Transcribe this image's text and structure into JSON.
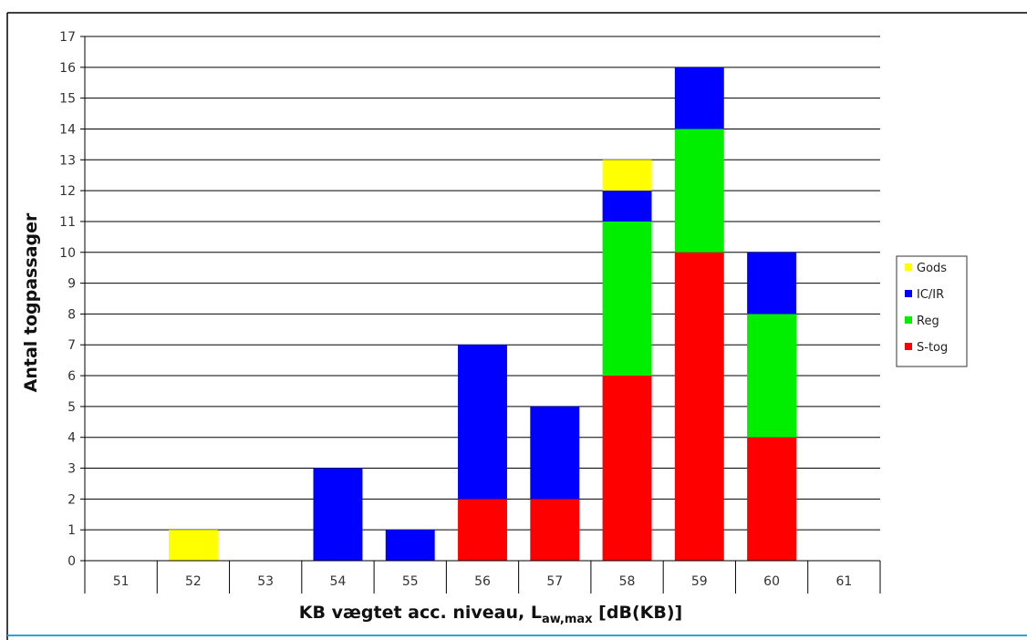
{
  "chart_data": {
    "type": "bar",
    "stacked": true,
    "categories": [
      "51",
      "52",
      "53",
      "54",
      "55",
      "56",
      "57",
      "58",
      "59",
      "60",
      "61"
    ],
    "series": [
      {
        "name": "S-tog",
        "color": "#ff0000",
        "values": [
          0,
          0,
          0,
          0,
          0,
          2,
          2,
          6,
          10,
          4,
          0
        ]
      },
      {
        "name": "Reg",
        "color": "#00ee00",
        "values": [
          0,
          0,
          0,
          0,
          0,
          0,
          0,
          5,
          4,
          4,
          0
        ]
      },
      {
        "name": "IC/IR",
        "color": "#0000ff",
        "values": [
          0,
          0,
          0,
          3,
          1,
          5,
          3,
          1,
          2,
          2,
          0
        ]
      },
      {
        "name": "Gods",
        "color": "#ffff00",
        "values": [
          0,
          1,
          0,
          0,
          0,
          0,
          0,
          1,
          0,
          0,
          0
        ]
      }
    ],
    "legend_order": [
      "Gods",
      "IC/IR",
      "Reg",
      "S-tog"
    ],
    "legend_position": "right",
    "ylim": [
      0,
      17
    ],
    "yticks": [
      0,
      1,
      2,
      3,
      4,
      5,
      6,
      7,
      8,
      9,
      10,
      11,
      12,
      13,
      14,
      15,
      16,
      17
    ],
    "ylabel": "Antal togpassager",
    "xlabel": {
      "prefix": "KB vægtet acc. niveau,  L",
      "subscript": "aw,max",
      "suffix": "  [dB(KB)]"
    },
    "grid": "horizontal"
  }
}
